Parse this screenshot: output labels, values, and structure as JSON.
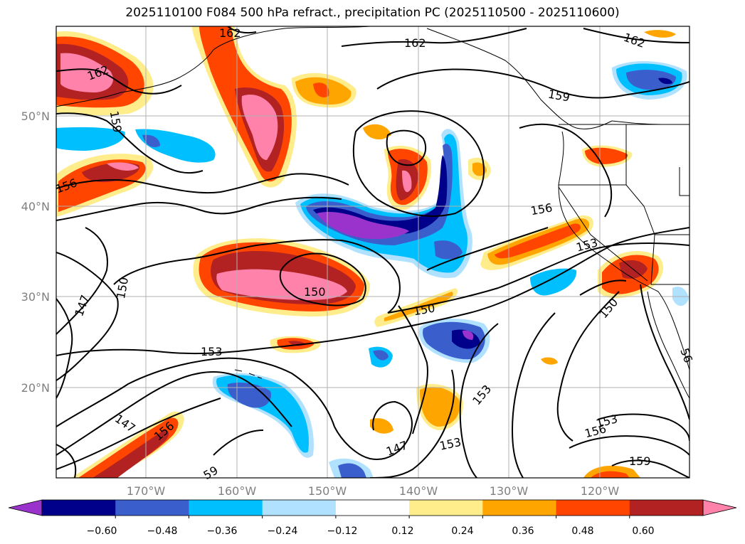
{
  "title": "2025110100 F084 500 hPa refract., precipitation PC (2025110500 - 2025110600)",
  "map": {
    "lat_labels": [
      "50°N",
      "40°N",
      "30°N",
      "20°N"
    ],
    "lon_labels": [
      "170°W",
      "160°W",
      "150°W",
      "140°W",
      "130°W",
      "120°W"
    ],
    "contour_labels": [
      {
        "text": "162",
        "id": "c162-a"
      },
      {
        "text": "162",
        "id": "c162-b"
      },
      {
        "text": "162",
        "id": "c162-c"
      },
      {
        "text": "162",
        "id": "c162-d"
      },
      {
        "text": "159",
        "id": "c159-a"
      },
      {
        "text": "159",
        "id": "c159-b"
      },
      {
        "text": "159",
        "id": "c159-c"
      },
      {
        "text": "59",
        "id": "c59-a"
      },
      {
        "text": "156",
        "id": "c156-a"
      },
      {
        "text": "156",
        "id": "c156-b"
      },
      {
        "text": "156",
        "id": "c156-c"
      },
      {
        "text": "156",
        "id": "c156-d"
      },
      {
        "text": "153",
        "id": "c153-a"
      },
      {
        "text": "153",
        "id": "c153-b"
      },
      {
        "text": "153",
        "id": "c153-c"
      },
      {
        "text": "153",
        "id": "c153-d"
      },
      {
        "text": "153",
        "id": "c153-e"
      },
      {
        "text": "150",
        "id": "c150-a"
      },
      {
        "text": "150",
        "id": "c150-b"
      },
      {
        "text": "150",
        "id": "c150-c"
      },
      {
        "text": "150",
        "id": "c150-d"
      },
      {
        "text": "147",
        "id": "c147-a"
      },
      {
        "text": "147",
        "id": "c147-b"
      },
      {
        "text": "147",
        "id": "c147-c"
      },
      {
        "text": "56",
        "id": "c56-a"
      }
    ]
  },
  "colorbar": {
    "colors": [
      "#9933cc",
      "#00008b",
      "#3a5fcd",
      "#00bfff",
      "#b0e2ff",
      "#ffffff",
      "#ffec8b",
      "#ffa500",
      "#ff4500",
      "#b22222",
      "#ff82ab"
    ],
    "labels": [
      "−0.60",
      "−0.48",
      "−0.36",
      "−0.24",
      "−0.12",
      "0.12",
      "0.24",
      "0.36",
      "0.48",
      "0.60"
    ]
  }
}
